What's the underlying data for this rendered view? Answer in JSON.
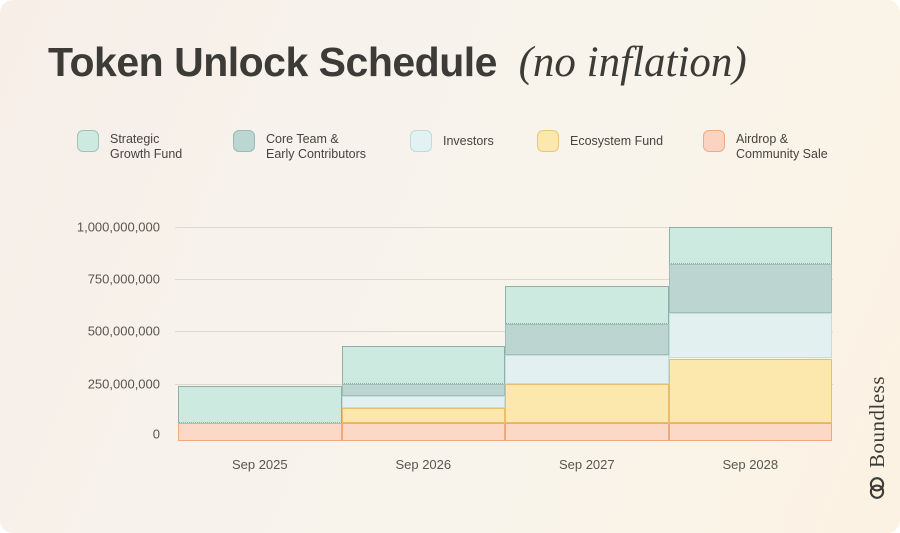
{
  "header": {
    "title": "Token Unlock Schedule",
    "title_suffix": "(no inflation)"
  },
  "legend": [
    {
      "lines": [
        "Strategic",
        "Growth Fund"
      ],
      "fill": "#cdeae1",
      "border": "#9ec4bc"
    },
    {
      "lines": [
        "Core Team &",
        "Early Contributors"
      ],
      "fill": "#bcd6d2",
      "border": "#9cbab6"
    },
    {
      "lines": [
        "Investors"
      ],
      "fill": "#e2f1f1",
      "border": "#c0dbda"
    },
    {
      "lines": [
        "Ecosystem Fund"
      ],
      "fill": "#fce7ac",
      "border": "#eac679"
    },
    {
      "lines": [
        "Airdrop &",
        "Community Sale"
      ],
      "fill": "#fbd4c1",
      "border": "#f0ab84"
    }
  ],
  "chart_data": {
    "type": "area",
    "subtype": "stacked-step",
    "title": "Token Unlock Schedule (no inflation)",
    "x": [
      "Sep 2025",
      "Sep 2026",
      "Sep 2027",
      "Sep 2028"
    ],
    "ylim": [
      0,
      1000000000
    ],
    "yticks": [
      0,
      250000000,
      500000000,
      750000000,
      1000000000
    ],
    "ytick_labels": [
      "0",
      "250,000,000",
      "500,000,000",
      "750,000,000",
      "1,000,000,000"
    ],
    "grid": true,
    "legend_position": "top",
    "series": [
      {
        "name": "Airdrop & Community Sale",
        "fill": "#fcd8c6",
        "stroke": "#f0a87e",
        "values": [
          60000000,
          60000000,
          60000000,
          60000000
        ]
      },
      {
        "name": "Ecosystem Fund",
        "fill": "#fce7ac",
        "stroke": "#e9bd69",
        "values": [
          0,
          75000000,
          190000000,
          310000000
        ]
      },
      {
        "name": "Investors",
        "fill": "#e2f1f0",
        "stroke": "#c4dedd",
        "values": [
          0,
          55000000,
          135000000,
          215000000
        ]
      },
      {
        "name": "Core Team & Early Contributors",
        "fill": "#bcd5d1",
        "stroke": "#9fbdb9",
        "values": [
          0,
          60000000,
          150000000,
          235000000
        ]
      },
      {
        "name": "Strategic Growth Fund",
        "fill": "#cdeae1",
        "stroke": "#8fafa8",
        "values": [
          180000000,
          180000000,
          180000000,
          180000000
        ],
        "bottom_border": "dotted"
      }
    ],
    "stacked_totals": [
      240000000,
      430000000,
      715000000,
      1000000000
    ]
  },
  "branding": {
    "wordmark": "Boundless"
  }
}
